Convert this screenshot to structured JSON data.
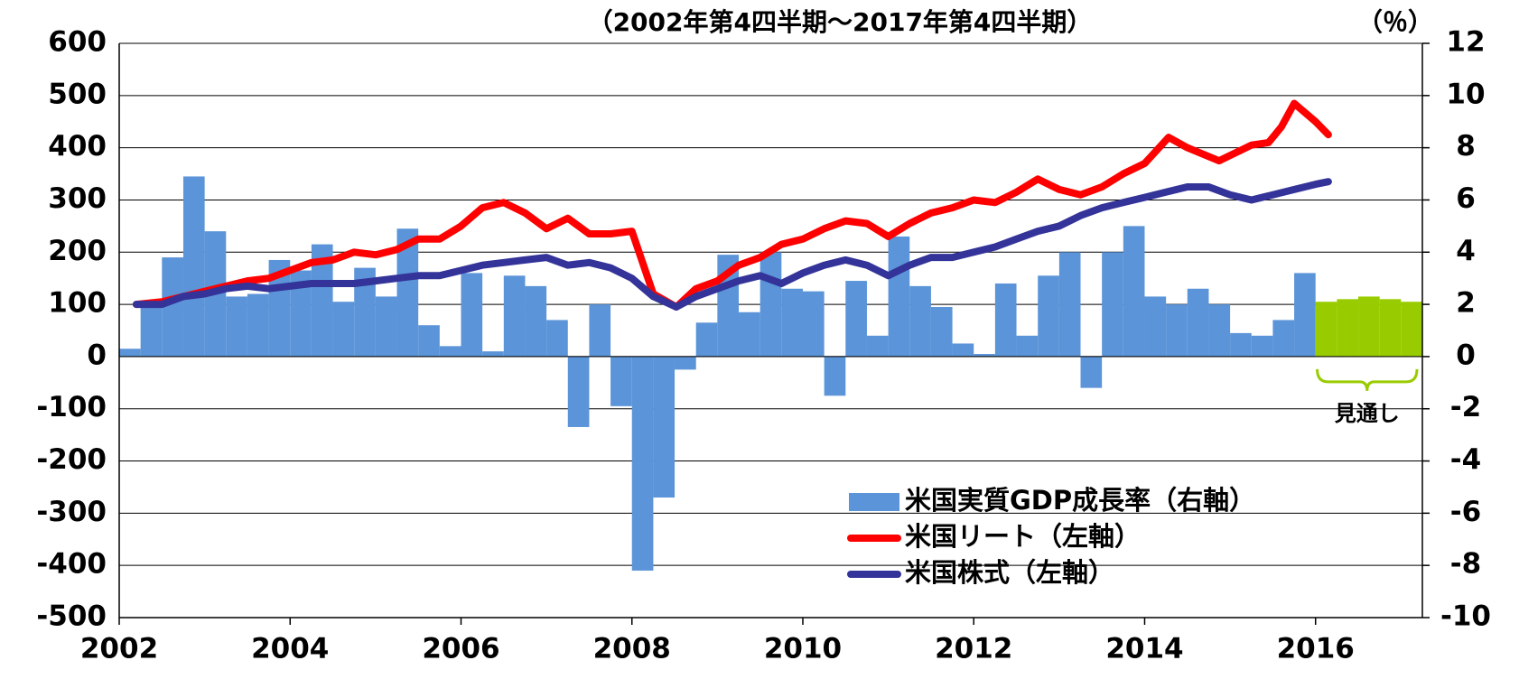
{
  "chart_data": {
    "type": "bar_line",
    "title": "（2002年第4四半期～2017年第4四半期）",
    "y2_label": "（％）",
    "annotation": "見通し",
    "xlim": [
      2002,
      2017.25
    ],
    "xticks": [
      2002,
      2004,
      2006,
      2008,
      2010,
      2012,
      2014,
      2016
    ],
    "ylim": [
      -500,
      600
    ],
    "yticks": [
      -500,
      -400,
      -300,
      -200,
      -100,
      0,
      100,
      200,
      300,
      400,
      500,
      600
    ],
    "y2lim": [
      -10,
      12
    ],
    "y2ticks": [
      -10,
      -8,
      -6,
      -4,
      -2,
      0,
      2,
      4,
      6,
      8,
      10,
      12
    ],
    "grid": true,
    "legend": "lower right",
    "series": [
      {
        "name": "米国実質GDP成長率（右軸）",
        "kind": "bar",
        "axis": "y2",
        "color": "#5b94d8",
        "colors": [
          "#5b94d8",
          "#5b94d8",
          "#5b94d8",
          "#5b94d8",
          "#5b94d8",
          "#5b94d8",
          "#5b94d8",
          "#5b94d8",
          "#5b94d8",
          "#5b94d8",
          "#5b94d8",
          "#5b94d8",
          "#5b94d8",
          "#5b94d8",
          "#5b94d8",
          "#5b94d8",
          "#5b94d8",
          "#5b94d8",
          "#5b94d8",
          "#5b94d8",
          "#5b94d8",
          "#5b94d8",
          "#5b94d8",
          "#5b94d8",
          "#5b94d8",
          "#5b94d8",
          "#5b94d8",
          "#5b94d8",
          "#5b94d8",
          "#5b94d8",
          "#5b94d8",
          "#5b94d8",
          "#5b94d8",
          "#5b94d8",
          "#5b94d8",
          "#5b94d8",
          "#5b94d8",
          "#5b94d8",
          "#5b94d8",
          "#5b94d8",
          "#5b94d8",
          "#5b94d8",
          "#5b94d8",
          "#5b94d8",
          "#5b94d8",
          "#5b94d8",
          "#5b94d8",
          "#5b94d8",
          "#5b94d8",
          "#5b94d8",
          "#5b94d8",
          "#5b94d8",
          "#5b94d8",
          "#5b94d8",
          "#5b94d8",
          "#5b94d8",
          "#99cc00",
          "#99cc00",
          "#99cc00",
          "#99cc00",
          "#99cc00"
        ],
        "x": [
          2002.125,
          2002.375,
          2002.625,
          2002.875,
          2003.125,
          2003.375,
          2003.625,
          2003.875,
          2004.125,
          2004.375,
          2004.625,
          2004.875,
          2005.125,
          2005.375,
          2005.625,
          2005.875,
          2006.125,
          2006.375,
          2006.625,
          2006.875,
          2007.125,
          2007.375,
          2007.625,
          2007.875,
          2008.125,
          2008.375,
          2008.625,
          2008.875,
          2009.125,
          2009.375,
          2009.625,
          2009.875,
          2010.125,
          2010.375,
          2010.625,
          2010.875,
          2011.125,
          2011.375,
          2011.625,
          2011.875,
          2012.125,
          2012.375,
          2012.625,
          2012.875,
          2013.125,
          2013.375,
          2013.625,
          2013.875,
          2014.125,
          2014.375,
          2014.625,
          2014.875,
          2015.125,
          2015.375,
          2015.625,
          2015.875,
          2016.125,
          2016.375,
          2016.625,
          2016.875,
          2017.125
        ],
        "values": [
          0.3,
          2.0,
          3.8,
          6.9,
          4.8,
          2.3,
          2.4,
          3.7,
          3.3,
          4.3,
          2.1,
          3.4,
          2.3,
          4.9,
          1.2,
          0.4,
          3.2,
          0.2,
          3.1,
          2.7,
          1.4,
          -2.7,
          2.0,
          -1.9,
          -8.2,
          -5.4,
          -0.5,
          1.3,
          3.9,
          1.7,
          4.0,
          2.6,
          2.5,
          -1.5,
          2.9,
          0.8,
          4.6,
          2.7,
          1.9,
          0.5,
          0.1,
          2.8,
          0.8,
          3.1,
          4.0,
          -1.2,
          4.0,
          5.0,
          2.3,
          2.0,
          2.6,
          2.0,
          0.9,
          0.8,
          1.4,
          3.2,
          2.1,
          2.2,
          2.3,
          2.2,
          2.1
        ]
      },
      {
        "name": "米国リート（左軸）",
        "kind": "line",
        "color": "#ff0000",
        "x": [
          2002.2,
          2002.5,
          2002.75,
          2003,
          2003.25,
          2003.5,
          2003.75,
          2004,
          2004.25,
          2004.5,
          2004.75,
          2005,
          2005.25,
          2005.5,
          2005.75,
          2006,
          2006.25,
          2006.5,
          2006.75,
          2007,
          2007.25,
          2007.5,
          2007.75,
          2008,
          2008.25,
          2008.52,
          2008.75,
          2009,
          2009.25,
          2009.5,
          2009.75,
          2010,
          2010.25,
          2010.5,
          2010.75,
          2011,
          2011.25,
          2011.5,
          2011.75,
          2012,
          2012.25,
          2012.5,
          2012.75,
          2013,
          2013.25,
          2013.5,
          2013.75,
          2014,
          2014.28,
          2014.5,
          2014.87,
          2015.25,
          2015.45,
          2015.6,
          2015.75,
          2016,
          2016.15
        ],
        "values": [
          100,
          105,
          115,
          125,
          135,
          145,
          150,
          165,
          180,
          185,
          200,
          195,
          205,
          225,
          225,
          250,
          285,
          295,
          275,
          245,
          265,
          235,
          235,
          240,
          120,
          95,
          130,
          145,
          175,
          190,
          215,
          225,
          245,
          260,
          255,
          230,
          255,
          275,
          285,
          300,
          295,
          315,
          340,
          320,
          310,
          325,
          350,
          370,
          420,
          400,
          375,
          405,
          410,
          440,
          485,
          450,
          425
        ]
      },
      {
        "name": "米国株式（左軸）",
        "kind": "line",
        "color": "#333399",
        "x": [
          2002.2,
          2002.5,
          2002.75,
          2003,
          2003.25,
          2003.5,
          2003.75,
          2004,
          2004.25,
          2004.5,
          2004.75,
          2005,
          2005.25,
          2005.5,
          2005.75,
          2006,
          2006.25,
          2006.5,
          2006.75,
          2007,
          2007.25,
          2007.5,
          2007.75,
          2008,
          2008.25,
          2008.52,
          2008.75,
          2009,
          2009.25,
          2009.5,
          2009.75,
          2010,
          2010.25,
          2010.5,
          2010.75,
          2011,
          2011.25,
          2011.5,
          2011.75,
          2012,
          2012.25,
          2012.5,
          2012.75,
          2013,
          2013.25,
          2013.5,
          2013.75,
          2014,
          2014.25,
          2014.5,
          2014.75,
          2015,
          2015.25,
          2015.5,
          2015.75,
          2016,
          2016.15
        ],
        "values": [
          100,
          100,
          115,
          120,
          130,
          135,
          130,
          135,
          140,
          140,
          140,
          145,
          150,
          155,
          155,
          165,
          175,
          180,
          185,
          190,
          175,
          180,
          170,
          150,
          115,
          95,
          115,
          130,
          145,
          155,
          140,
          160,
          175,
          185,
          175,
          155,
          175,
          190,
          190,
          200,
          210,
          225,
          240,
          250,
          270,
          285,
          295,
          305,
          315,
          325,
          325,
          310,
          300,
          310,
          320,
          330,
          335
        ]
      }
    ]
  }
}
